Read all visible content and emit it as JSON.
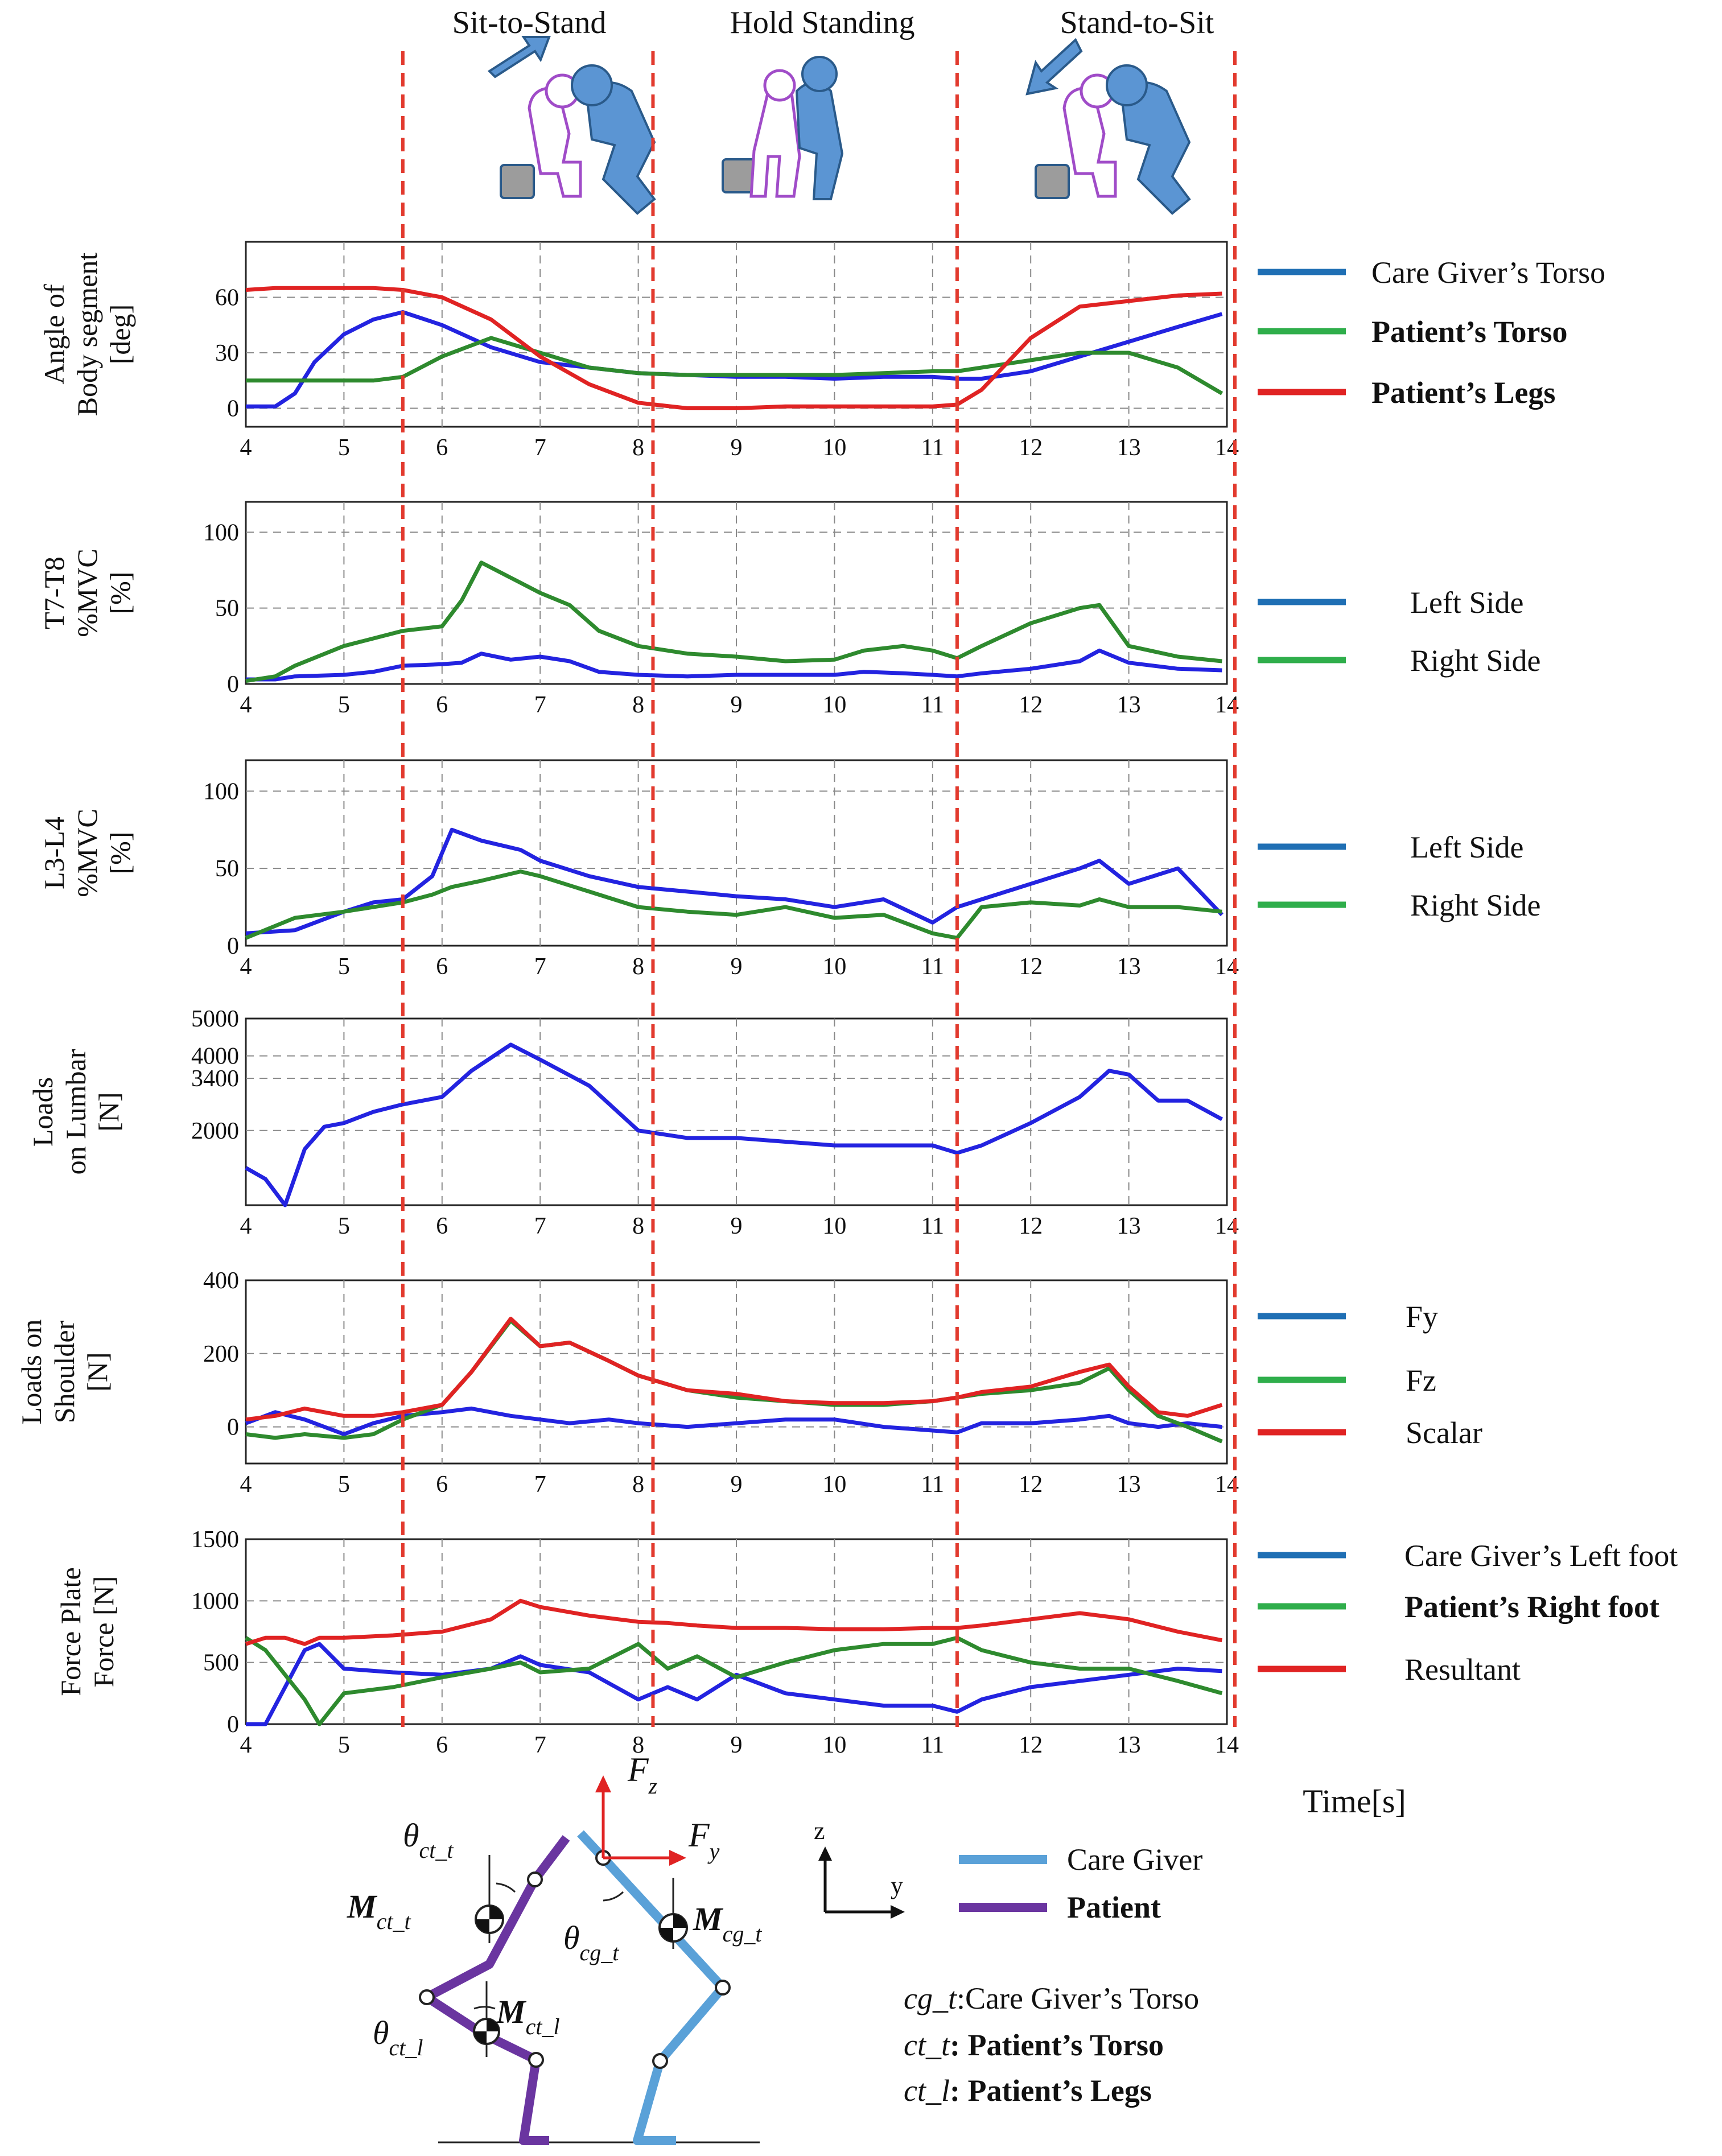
{
  "colors": {
    "blue": "#2323e0",
    "green": "#2e8a2e",
    "red": "#e02323",
    "legend_blue": "#1f6fb4",
    "legend_green": "#2fae4b",
    "legend_red": "#e02323",
    "care_giver": "#5aa1d8",
    "patient": "#6a35a0",
    "phase_line": "#e23a2e"
  },
  "phases": [
    {
      "label": "Sit-to-Stand",
      "center": 6.9
    },
    {
      "label": "Hold Standing",
      "center": 9.8
    },
    {
      "label": "Stand-to-Sit",
      "center": 13.1
    }
  ],
  "phase_boundaries": [
    5.6,
    8.15,
    11.25,
    14.1
  ],
  "x_axis": {
    "range": [
      4,
      14
    ],
    "ticks": [
      4,
      5,
      6,
      7,
      8,
      9,
      10,
      11,
      12,
      13,
      14
    ],
    "label": "Time[s]"
  },
  "chart_data": [
    {
      "type": "line",
      "id": "angle",
      "ylabel": [
        "Angle of",
        "Body segment",
        "[deg]"
      ],
      "ylim": [
        -10,
        90
      ],
      "yticks": [
        0,
        30,
        60
      ],
      "legend_labels": [
        "Care Giver’s Torso",
        "Patient’s Torso",
        "Patient’s Legs"
      ],
      "x": [
        4,
        4.3,
        4.5,
        4.7,
        5,
        5.3,
        5.6,
        6,
        6.5,
        7,
        7.5,
        8,
        8.5,
        9,
        9.5,
        10,
        10.5,
        11,
        11.25,
        11.5,
        12,
        12.5,
        13,
        13.5,
        13.95
      ],
      "series": [
        {
          "name": "Care Giver’s Torso",
          "color": "blue",
          "values": [
            1,
            1,
            8,
            25,
            40,
            48,
            52,
            45,
            33,
            25,
            22,
            19,
            18,
            17,
            17,
            16,
            17,
            17,
            16,
            16,
            20,
            28,
            36,
            44,
            51
          ]
        },
        {
          "name": "Patient’s Torso",
          "color": "green",
          "values": [
            15,
            15,
            15,
            15,
            15,
            15,
            17,
            28,
            38,
            30,
            22,
            19,
            18,
            18,
            18,
            18,
            19,
            20,
            20,
            22,
            26,
            30,
            30,
            22,
            8
          ]
        },
        {
          "name": "Patient’s Legs",
          "color": "red",
          "values": [
            64,
            65,
            65,
            65,
            65,
            65,
            64,
            60,
            48,
            28,
            13,
            3,
            0,
            0,
            1,
            1,
            1,
            1,
            2,
            10,
            38,
            55,
            58,
            61,
            62
          ]
        }
      ]
    },
    {
      "type": "line",
      "id": "t7t8",
      "ylabel": [
        "T7-T8",
        "%MVC",
        "[%]"
      ],
      "ylim": [
        0,
        120
      ],
      "yticks": [
        0,
        50,
        100
      ],
      "legend_labels": [
        "Left Side",
        "Right Side"
      ],
      "x": [
        4,
        4.3,
        4.5,
        5,
        5.3,
        5.6,
        6,
        6.2,
        6.4,
        6.7,
        7,
        7.3,
        7.6,
        8,
        8.5,
        9,
        9.5,
        10,
        10.3,
        10.7,
        11,
        11.25,
        11.5,
        12,
        12.5,
        12.7,
        13,
        13.5,
        13.95
      ],
      "series": [
        {
          "name": "Left Side",
          "color": "blue",
          "values": [
            3,
            3,
            5,
            6,
            8,
            12,
            13,
            14,
            20,
            16,
            18,
            15,
            8,
            6,
            5,
            6,
            6,
            6,
            8,
            7,
            6,
            5,
            7,
            10,
            15,
            22,
            14,
            10,
            9
          ]
        },
        {
          "name": "Right Side",
          "color": "green",
          "values": [
            2,
            5,
            12,
            25,
            30,
            35,
            38,
            55,
            80,
            70,
            60,
            52,
            35,
            25,
            20,
            18,
            15,
            16,
            22,
            25,
            22,
            17,
            25,
            40,
            50,
            52,
            25,
            18,
            15
          ]
        }
      ]
    },
    {
      "type": "line",
      "id": "l3l4",
      "ylabel": [
        "L3-L4",
        "%MVC",
        "[%]"
      ],
      "ylim": [
        0,
        120
      ],
      "yticks": [
        0,
        50,
        100
      ],
      "legend_labels": [
        "Left Side",
        "Right Side"
      ],
      "x": [
        4,
        4.5,
        5,
        5.3,
        5.6,
        5.9,
        6.1,
        6.4,
        6.8,
        7,
        7.5,
        8,
        8.5,
        9,
        9.5,
        10,
        10.5,
        11,
        11.25,
        11.5,
        12,
        12.5,
        12.7,
        13,
        13.5,
        13.95
      ],
      "series": [
        {
          "name": "Left Side",
          "color": "blue",
          "values": [
            8,
            10,
            22,
            28,
            30,
            45,
            75,
            68,
            62,
            55,
            45,
            38,
            35,
            32,
            30,
            25,
            30,
            15,
            25,
            30,
            40,
            50,
            55,
            40,
            50,
            20
          ]
        },
        {
          "name": "Right Side",
          "color": "green",
          "values": [
            5,
            18,
            22,
            25,
            28,
            33,
            38,
            42,
            48,
            45,
            35,
            25,
            22,
            20,
            25,
            18,
            20,
            8,
            5,
            25,
            28,
            26,
            30,
            25,
            25,
            22
          ]
        }
      ]
    },
    {
      "type": "line",
      "id": "lumbar",
      "ylabel": [
        "Loads",
        "on Lumbar",
        "[N]"
      ],
      "ylim": [
        0,
        5000
      ],
      "yticks": [
        2000,
        3400,
        4000,
        5000
      ],
      "legend_labels": [],
      "x": [
        4,
        4.2,
        4.4,
        4.6,
        4.8,
        5,
        5.3,
        5.6,
        6,
        6.3,
        6.7,
        7,
        7.5,
        8,
        8.5,
        9,
        9.5,
        10,
        10.5,
        11,
        11.25,
        11.5,
        12,
        12.5,
        12.8,
        13,
        13.3,
        13.6,
        13.95
      ],
      "series": [
        {
          "name": "Lumbar",
          "color": "blue",
          "values": [
            1000,
            700,
            0,
            1500,
            2100,
            2200,
            2500,
            2700,
            2900,
            3600,
            4300,
            3900,
            3200,
            2000,
            1800,
            1800,
            1700,
            1600,
            1600,
            1600,
            1400,
            1600,
            2200,
            2900,
            3600,
            3500,
            2800,
            2800,
            2300
          ]
        }
      ]
    },
    {
      "type": "line",
      "id": "shoulder",
      "ylabel": [
        "Loads on",
        "Shoulder",
        "[N]"
      ],
      "ylim": [
        -100,
        400
      ],
      "yticks": [
        0,
        200,
        400
      ],
      "legend_labels": [
        "Fy",
        "Fz",
        "Scalar"
      ],
      "x": [
        4,
        4.3,
        4.6,
        5,
        5.3,
        5.6,
        6,
        6.3,
        6.7,
        7,
        7.3,
        7.7,
        8,
        8.5,
        9,
        9.5,
        10,
        10.5,
        11,
        11.25,
        11.5,
        12,
        12.5,
        12.8,
        13,
        13.3,
        13.6,
        13.95
      ],
      "series": [
        {
          "name": "Fy",
          "color": "blue",
          "values": [
            10,
            40,
            20,
            -20,
            10,
            30,
            40,
            50,
            30,
            20,
            10,
            20,
            10,
            0,
            10,
            20,
            20,
            0,
            -10,
            -15,
            10,
            10,
            20,
            30,
            10,
            0,
            10,
            0
          ]
        },
        {
          "name": "Fz",
          "color": "green",
          "values": [
            -20,
            -30,
            -20,
            -30,
            -20,
            20,
            60,
            150,
            290,
            220,
            230,
            180,
            140,
            100,
            80,
            70,
            60,
            60,
            70,
            80,
            90,
            100,
            120,
            160,
            100,
            30,
            0,
            -40
          ]
        },
        {
          "name": "Scalar",
          "color": "red",
          "values": [
            20,
            30,
            50,
            30,
            30,
            40,
            60,
            150,
            295,
            220,
            230,
            180,
            140,
            100,
            90,
            70,
            65,
            65,
            70,
            80,
            95,
            110,
            150,
            170,
            110,
            40,
            30,
            60
          ]
        }
      ]
    },
    {
      "type": "line",
      "id": "forceplate",
      "ylabel": [
        "Force Plate",
        "Force [N]"
      ],
      "ylim": [
        0,
        1500
      ],
      "yticks": [
        0,
        500,
        1000,
        1500
      ],
      "legend_labels": [
        "Care Giver’s Left foot",
        "Patient’s Right foot",
        "Resultant"
      ],
      "x": [
        4,
        4.2,
        4.4,
        4.6,
        4.75,
        5,
        5.5,
        6,
        6.5,
        6.8,
        7,
        7.5,
        8,
        8.3,
        8.6,
        9,
        9.5,
        10,
        10.5,
        11,
        11.25,
        11.5,
        12,
        12.5,
        13,
        13.5,
        13.95
      ],
      "series": [
        {
          "name": "Care Giver’s Left foot",
          "color": "blue",
          "values": [
            0,
            0,
            300,
            600,
            650,
            450,
            420,
            400,
            450,
            550,
            480,
            420,
            200,
            300,
            200,
            400,
            250,
            200,
            150,
            150,
            100,
            200,
            300,
            350,
            400,
            450,
            430
          ]
        },
        {
          "name": "Patient’s Right foot",
          "color": "green",
          "values": [
            700,
            600,
            400,
            200,
            0,
            250,
            300,
            380,
            450,
            500,
            420,
            450,
            650,
            450,
            550,
            380,
            500,
            600,
            650,
            650,
            700,
            600,
            500,
            450,
            450,
            350,
            250
          ]
        },
        {
          "name": "Resultant",
          "color": "red",
          "values": [
            650,
            700,
            700,
            650,
            700,
            700,
            720,
            750,
            850,
            1000,
            950,
            880,
            830,
            820,
            800,
            780,
            780,
            770,
            770,
            780,
            780,
            800,
            850,
            900,
            850,
            750,
            680
          ]
        }
      ]
    }
  ],
  "diagram": {
    "fz_label": "F",
    "fz_sub": "z",
    "fy_label": "F",
    "fy_sub": "y",
    "theta_ct_t": {
      "sym": "θ",
      "sub": "ct_t"
    },
    "m_ct_t": {
      "sym": "M",
      "sub": "ct_t"
    },
    "theta_cg_t": {
      "sym": "θ",
      "sub": "cg_t"
    },
    "m_cg_t": {
      "sym": "M",
      "sub": "cg_t"
    },
    "m_ct_l": {
      "sym": "M",
      "sub": "ct_l"
    },
    "theta_ct_l": {
      "sym": "θ",
      "sub": "ct_l"
    },
    "axis_z": "z",
    "axis_y": "y",
    "legend": [
      {
        "label": "Care Giver",
        "color": "care_giver"
      },
      {
        "label": "Patient",
        "color": "patient"
      }
    ],
    "abbreviations": [
      {
        "key": "cg_t",
        "text": ":Care Giver’s Torso"
      },
      {
        "key": "ct_t",
        "text": ": Patient’s Torso"
      },
      {
        "key": "ct_l",
        "text": ": Patient’s Legs"
      }
    ]
  }
}
